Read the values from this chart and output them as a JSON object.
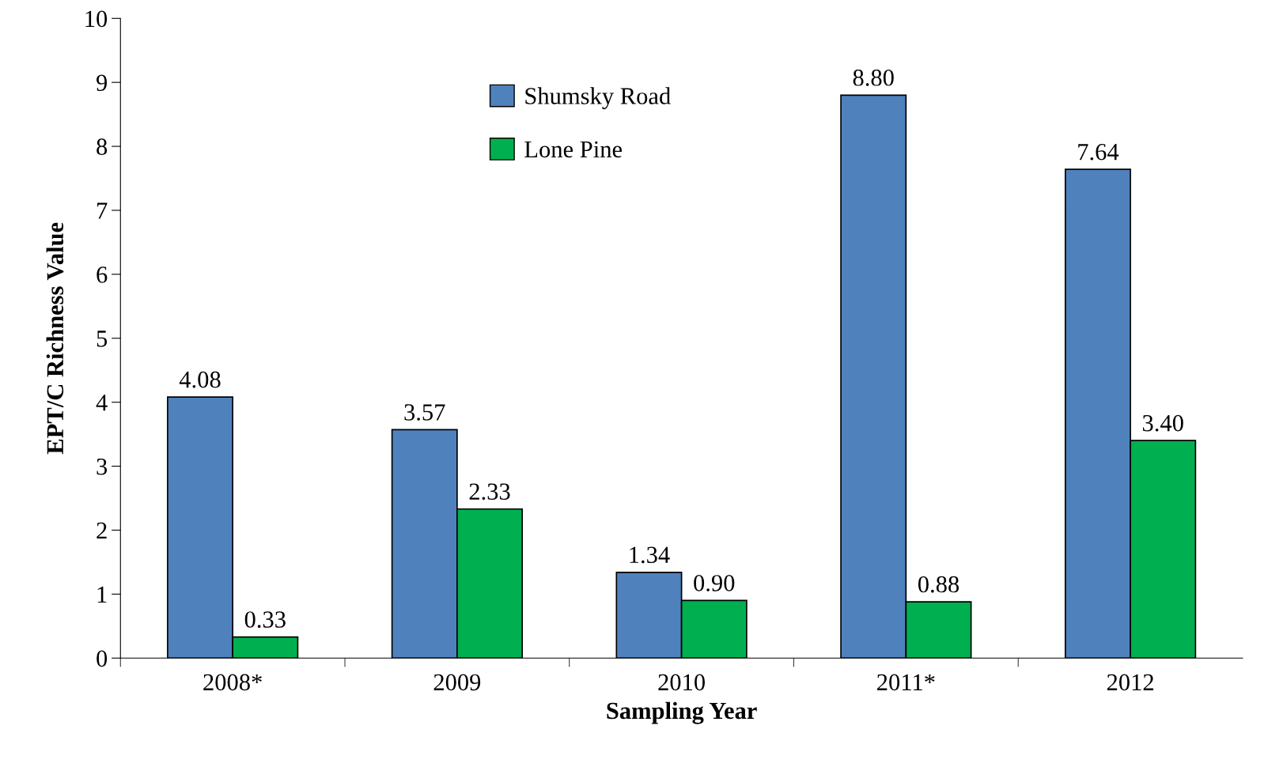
{
  "chart_data": {
    "type": "bar",
    "xlabel": "Sampling Year",
    "ylabel": "EPT/C Richness Value",
    "categories": [
      "2008*",
      "2009",
      "2010",
      "2011*",
      "2012"
    ],
    "series": [
      {
        "name": "Shumsky Road",
        "color": "#4f81bd",
        "values": [
          4.08,
          3.57,
          1.34,
          8.8,
          7.64
        ],
        "value_labels": [
          "4.08",
          "3.57",
          "1.34",
          "8.80",
          "7.64"
        ]
      },
      {
        "name": "Lone Pine",
        "color": "#00b050",
        "values": [
          0.33,
          2.33,
          0.9,
          0.88,
          3.4
        ],
        "value_labels": [
          "0.33",
          "2.33",
          "0.90",
          "0.88",
          "3.40"
        ]
      }
    ],
    "ylim": [
      0,
      10
    ],
    "yticks": [
      0,
      1,
      2,
      3,
      4,
      5,
      6,
      7,
      8,
      9,
      10
    ],
    "grid": false,
    "legend": "top"
  }
}
